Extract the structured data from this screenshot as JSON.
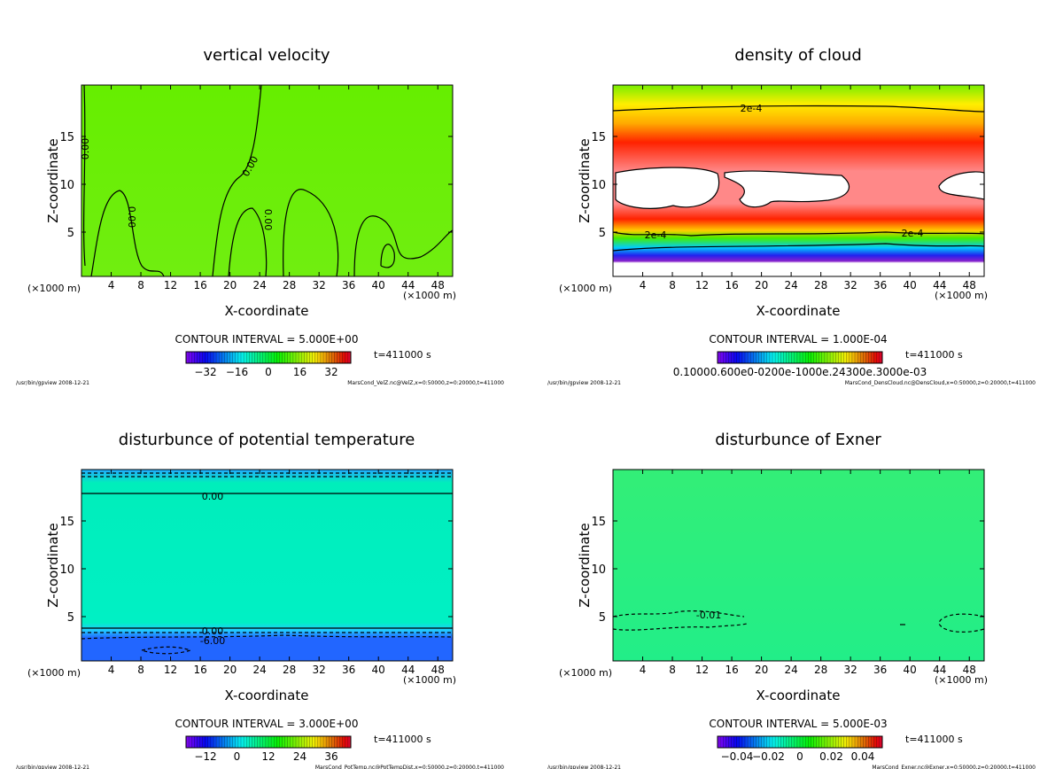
{
  "chart_data": [
    {
      "type": "heatmap",
      "title": "vertical velocity",
      "xlabel": "X-coordinate",
      "ylabel": "Z-coordinate",
      "x_unit_left": "(×1000 m)",
      "x_unit_right": "(×1000 m)",
      "xlim": [
        0,
        50
      ],
      "ylim": [
        0,
        20
      ],
      "xticks": [
        "4",
        "8",
        "12",
        "16",
        "20",
        "24",
        "28",
        "32",
        "36",
        "40",
        "44",
        "48"
      ],
      "yticks": [
        "5",
        "10",
        "15"
      ],
      "contour_labels": [
        "0.00",
        "0.00",
        "0.00",
        "0.00"
      ],
      "contour_interval": "CONTOUR INTERVAL = 5.000E+00",
      "colorbar_ticks": [
        "−32",
        "−16",
        "0",
        "16",
        "32"
      ],
      "time": "t=411000 s",
      "footer_left": "/usr/bin/gpview  2008-12-21",
      "footer_right": "MarsCond_VelZ.nc@VelZ,x=0:50000,z=0:20000,t=411000",
      "fill_colors": [
        "#66ee00",
        "#70ee10"
      ]
    },
    {
      "type": "heatmap",
      "title": "density of cloud",
      "xlabel": "X-coordinate",
      "ylabel": "Z-coordinate",
      "x_unit_left": "(×1000 m)",
      "x_unit_right": "(×1000 m)",
      "xlim": [
        0,
        50
      ],
      "ylim": [
        0,
        20
      ],
      "xticks": [
        "4",
        "8",
        "12",
        "16",
        "20",
        "24",
        "28",
        "32",
        "36",
        "40",
        "44",
        "48"
      ],
      "yticks": [
        "5",
        "10",
        "15"
      ],
      "contour_labels": [
        "2e-4",
        "2e-4",
        "2e-4"
      ],
      "contour_interval": "CONTOUR INTERVAL = 1.000E-04",
      "colorbar_ticks": [
        "0.10000.600e0-0200e-1000e.24300e.3000e-03"
      ],
      "time": "t=411000 s",
      "footer_left": "/usr/bin/gpview  2008-12-21",
      "footer_right": "MarsCond_DensCloud.nc@DensCloud,x=0:50000,z=0:20000,t=411000",
      "fill_colors": [
        "#77ee00",
        "#ffee00",
        "#ff2200",
        "#ff8888",
        "#00ccff",
        "#2222ee",
        "#8822cc"
      ]
    },
    {
      "type": "heatmap",
      "title": "disturbunce of potential temperature",
      "xlabel": "X-coordinate",
      "ylabel": "Z-coordinate",
      "x_unit_left": "(×1000 m)",
      "x_unit_right": "(×1000 m)",
      "xlim": [
        0,
        50
      ],
      "ylim": [
        0,
        20
      ],
      "xticks": [
        "4",
        "8",
        "12",
        "16",
        "20",
        "24",
        "28",
        "32",
        "36",
        "40",
        "44",
        "48"
      ],
      "yticks": [
        "5",
        "10",
        "15"
      ],
      "contour_labels": [
        "0.00",
        "0.00",
        "-6.00"
      ],
      "contour_interval": "CONTOUR INTERVAL = 3.000E+00",
      "colorbar_ticks": [
        "−12",
        "0",
        "12",
        "24",
        "36"
      ],
      "time": "t=411000 s",
      "footer_left": "/usr/bin/gpview  2008-12-21",
      "footer_right": "MarsCond_PotTemp.nc@PotTempDist,x=0:50000,z=0:20000,t=411000",
      "fill_colors": [
        "#22aaff",
        "#00eebb",
        "#00f0c4",
        "#2266ff"
      ]
    },
    {
      "type": "heatmap",
      "title": "disturbunce of Exner",
      "xlabel": "X-coordinate",
      "ylabel": "Z-coordinate",
      "x_unit_left": "(×1000 m)",
      "x_unit_right": "(×1000 m)",
      "xlim": [
        0,
        50
      ],
      "ylim": [
        0,
        20
      ],
      "xticks": [
        "4",
        "8",
        "12",
        "16",
        "20",
        "24",
        "28",
        "32",
        "36",
        "40",
        "44",
        "48"
      ],
      "yticks": [
        "5",
        "10",
        "15"
      ],
      "contour_labels": [
        "-0.01"
      ],
      "contour_interval": "CONTOUR INTERVAL = 5.000E-03",
      "colorbar_ticks": [
        "−0.04",
        "−0.02",
        "0",
        "0.02",
        "0.04"
      ],
      "time": "t=411000 s",
      "footer_left": "/usr/bin/gpview  2008-12-21",
      "footer_right": "MarsCond_Exner.nc@Exner,x=0:50000,z=0:20000,t=411000",
      "fill_colors": [
        "#33ee77",
        "#22ee88"
      ]
    }
  ]
}
